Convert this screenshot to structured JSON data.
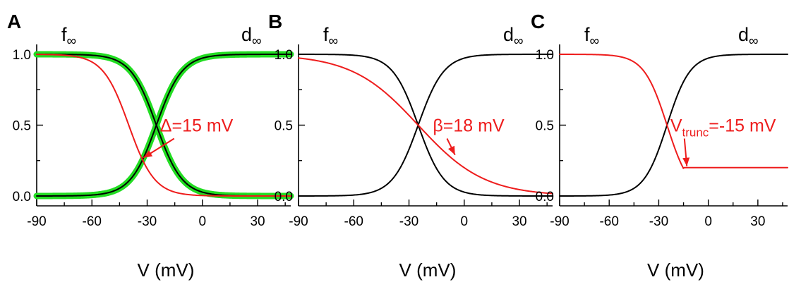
{
  "chart_data": [
    {
      "panel": "A",
      "type": "line",
      "xlabel": "V (mV)",
      "xlim": [
        -90,
        48
      ],
      "ylim": [
        0,
        1
      ],
      "xticks": [
        -90,
        -60,
        -30,
        0,
        30
      ],
      "yticks": [
        0.0,
        0.5,
        1.0
      ],
      "ytick_labels": [
        "0.0",
        "0.5",
        "1.0"
      ],
      "labels": {
        "left": {
          "main": "f",
          "sub": "∞"
        },
        "right": {
          "main": "d",
          "sub": "∞"
        }
      },
      "annotation": {
        "main": "Δ=15 mV",
        "sub": "",
        "tail": "",
        "color": "#ee1c1c",
        "x": -23,
        "y": 0.5,
        "arrow_to": [
          -32,
          0.27
        ]
      },
      "series": [
        {
          "color": "#22dd22",
          "width": 9,
          "values": {
            "kind": "boltzmann",
            "v_half": -25,
            "k": 7,
            "direction": "falling",
            "min": 0.0,
            "trunc": null
          }
        },
        {
          "color": "#22dd22",
          "width": 9,
          "values": {
            "kind": "boltzmann",
            "v_half": -25,
            "k": 7,
            "direction": "rising",
            "min": 0.0,
            "trunc": null
          }
        },
        {
          "color": "#000000",
          "width": 2,
          "values": {
            "kind": "boltzmann",
            "v_half": -25,
            "k": 7,
            "direction": "falling",
            "min": 0.0,
            "trunc": null
          }
        },
        {
          "color": "#000000",
          "width": 2,
          "values": {
            "kind": "boltzmann",
            "v_half": -25,
            "k": 7,
            "direction": "rising",
            "min": 0.0,
            "trunc": null
          }
        },
        {
          "color": "#ee1c1c",
          "width": 2,
          "values": {
            "kind": "boltzmann",
            "v_half": -40,
            "k": 7,
            "direction": "falling",
            "min": 0.0,
            "trunc": null
          }
        }
      ]
    },
    {
      "panel": "B",
      "type": "line",
      "xlabel": "V (mV)",
      "xlim": [
        -90,
        48
      ],
      "ylim": [
        0,
        1
      ],
      "xticks": [
        -90,
        -60,
        -30,
        0,
        30
      ],
      "yticks": [
        0.0,
        0.5,
        1.0
      ],
      "ytick_labels": [
        "0.0",
        "0.5",
        "1.0"
      ],
      "labels": {
        "left": {
          "main": "f",
          "sub": "∞"
        },
        "right": {
          "main": "d",
          "sub": "∞"
        }
      },
      "annotation": {
        "main": "β=18 mV",
        "sub": "",
        "tail": "",
        "color": "#ee1c1c",
        "x": -17,
        "y": 0.5,
        "arrow_to": [
          -5,
          0.29
        ]
      },
      "series": [
        {
          "color": "#000000",
          "width": 2,
          "values": {
            "kind": "boltzmann",
            "v_half": -25,
            "k": 7,
            "direction": "falling",
            "min": 0.0,
            "trunc": null
          }
        },
        {
          "color": "#000000",
          "width": 2,
          "values": {
            "kind": "boltzmann",
            "v_half": -25,
            "k": 7,
            "direction": "rising",
            "min": 0.0,
            "trunc": null
          }
        },
        {
          "color": "#ee1c1c",
          "width": 2,
          "values": {
            "kind": "boltzmann",
            "v_half": -25,
            "k": 18,
            "direction": "falling",
            "min": 0.0,
            "trunc": null
          }
        }
      ]
    },
    {
      "panel": "C",
      "type": "line",
      "xlabel": "V (mV)",
      "xlim": [
        -90,
        48
      ],
      "ylim": [
        0,
        1
      ],
      "xticks": [
        -90,
        -60,
        -30,
        0,
        30
      ],
      "yticks": [
        0.0,
        0.5,
        1.0
      ],
      "ytick_labels": [
        "0.0",
        "0.5",
        "1.0"
      ],
      "labels": {
        "left": {
          "main": "f",
          "sub": "∞"
        },
        "right": {
          "main": "d",
          "sub": "∞"
        }
      },
      "annotation": {
        "main": "V",
        "sub": "trunc",
        "tail": "=-15 mV",
        "color": "#ee1c1c",
        "x": -23,
        "y": 0.5,
        "arrow_to": [
          -13,
          0.21
        ]
      },
      "series": [
        {
          "color": "#000000",
          "width": 2,
          "values": {
            "kind": "boltzmann",
            "v_half": -25,
            "k": 7,
            "direction": "rising",
            "min": 0.0,
            "trunc": null
          }
        },
        {
          "color": "#ee1c1c",
          "width": 2,
          "values": {
            "kind": "boltzmann",
            "v_half": -25,
            "k": 7,
            "direction": "falling",
            "min": 0.2,
            "trunc": -15
          }
        }
      ]
    }
  ]
}
